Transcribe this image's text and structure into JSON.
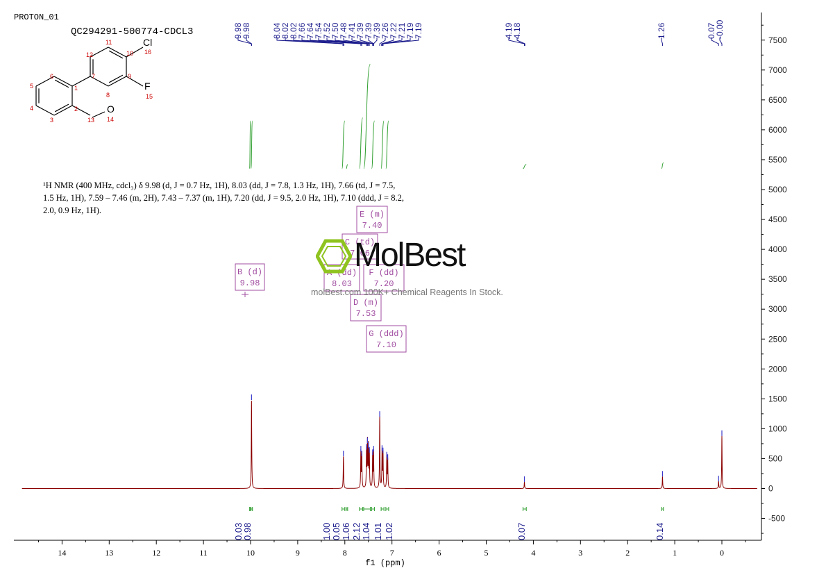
{
  "header": {
    "experiment": "PROTON_01",
    "sample": "QC294291-500774-CDCL3"
  },
  "structure": {
    "name": "chemical-structure",
    "atom_numbers": [
      "1",
      "2",
      "3",
      "4",
      "5",
      "6",
      "7",
      "8",
      "9",
      "10",
      "11",
      "12",
      "13",
      "14",
      "15",
      "16"
    ],
    "heteroatoms": [
      "Cl",
      "F",
      "O"
    ]
  },
  "description": {
    "lines": [
      "¹H NMR (400 MHz, cdcl₃) δ 9.98 (d, J = 0.7 Hz, 1H), 8.03 (dd, J = 7.8, 1.3 Hz, 1H), 7.66 (td, J = 7.5,",
      "1.5 Hz, 1H), 7.59 – 7.46 (m, 2H), 7.43 – 7.37 (m, 1H), 7.20 (dd, J = 9.5, 2.0 Hz, 1H), 7.10 (ddd, J = 8.2,",
      "2.0, 0.9 Hz, 1H)."
    ]
  },
  "watermark": {
    "logo": "MolBest",
    "text": "molBest.com 100K+ Chemical Reagents In Stock."
  },
  "chart_data": {
    "type": "line",
    "title": "",
    "xlabel": "f1 (ppm)",
    "ylabel": "",
    "xlim": [
      14.85,
      -0.75
    ],
    "x_reversed": true,
    "ylim": [
      -900,
      7950
    ],
    "xticks": [
      14,
      13,
      12,
      11,
      10,
      9,
      8,
      7,
      6,
      5,
      4,
      3,
      2,
      1,
      0
    ],
    "yticks": [
      -500,
      0,
      500,
      1000,
      1500,
      2000,
      2500,
      3000,
      3500,
      4000,
      4500,
      5000,
      5500,
      6000,
      6500,
      7000,
      7500
    ],
    "grid": false,
    "colors": {
      "spectrum": "#8b0000",
      "integral": "#2e9e2e",
      "peak_label": "#1a1a8c",
      "multiplet_box": "#a04ca0",
      "peak_marker": "#3a3acc"
    },
    "peak_labels": [
      "9.98",
      "9.98",
      "8.04",
      "8.02",
      "8.02",
      "7.66",
      "7.64",
      "7.54",
      "7.52",
      "7.50",
      "7.48",
      "7.41",
      "7.39",
      "7.39",
      "7.39",
      "7.26",
      "7.22",
      "7.21",
      "7.19",
      "7.19",
      "4.19",
      "4.18",
      "1.26",
      "0.07",
      "-0.00"
    ],
    "peaks": [
      {
        "x": 9.98,
        "y": 1480
      },
      {
        "x": 8.03,
        "y": 540
      },
      {
        "x": 7.66,
        "y": 620
      },
      {
        "x": 7.64,
        "y": 540
      },
      {
        "x": 7.54,
        "y": 650
      },
      {
        "x": 7.52,
        "y": 760
      },
      {
        "x": 7.5,
        "y": 680
      },
      {
        "x": 7.48,
        "y": 600
      },
      {
        "x": 7.41,
        "y": 560
      },
      {
        "x": 7.39,
        "y": 620
      },
      {
        "x": 7.26,
        "y": 1200
      },
      {
        "x": 7.21,
        "y": 630
      },
      {
        "x": 7.19,
        "y": 590
      },
      {
        "x": 7.11,
        "y": 520
      },
      {
        "x": 7.09,
        "y": 480
      },
      {
        "x": 4.19,
        "y": 110
      },
      {
        "x": 1.26,
        "y": 200
      },
      {
        "x": 0.07,
        "y": 120
      },
      {
        "x": 0.0,
        "y": 880
      }
    ],
    "integrals": [
      {
        "from": 10.02,
        "to": 10.0,
        "value": "0.03",
        "low": 5350,
        "high": 6150
      },
      {
        "from": 9.99,
        "to": 9.96,
        "value": "0.98",
        "low": 5350,
        "high": 6150
      },
      {
        "from": 8.06,
        "to": 8.0,
        "value": "1.00",
        "low": 5350,
        "high": 6150
      },
      {
        "from": 7.97,
        "to": 7.94,
        "value": "0.05",
        "low": 5350,
        "high": 5420
      },
      {
        "from": 7.69,
        "to": 7.62,
        "value": "1.06",
        "low": 5350,
        "high": 6200
      },
      {
        "from": 7.6,
        "to": 7.46,
        "value": "2.12",
        "low": 5350,
        "high": 7100
      },
      {
        "from": 7.43,
        "to": 7.37,
        "value": "1.04",
        "low": 5350,
        "high": 6150
      },
      {
        "from": 7.23,
        "to": 7.17,
        "value": "1.01",
        "low": 5350,
        "high": 6150
      },
      {
        "from": 7.13,
        "to": 7.07,
        "value": "1.02",
        "low": 5350,
        "high": 6150
      },
      {
        "from": 4.22,
        "to": 4.15,
        "value": "0.07",
        "low": 5350,
        "high": 5420
      },
      {
        "from": 1.28,
        "to": 1.24,
        "value": "0.14",
        "low": 5350,
        "high": 5450
      }
    ],
    "multiplets": [
      {
        "letter": "B (d)",
        "shift": "9.98"
      },
      {
        "letter": "A (dd)",
        "shift": "8.03"
      },
      {
        "letter": "C (td)",
        "shift": "7.66"
      },
      {
        "letter": "D (m)",
        "shift": "7.53"
      },
      {
        "letter": "E (m)",
        "shift": "7.40"
      },
      {
        "letter": "F (dd)",
        "shift": "7.20"
      },
      {
        "letter": "G (ddd)",
        "shift": "7.10"
      }
    ]
  }
}
